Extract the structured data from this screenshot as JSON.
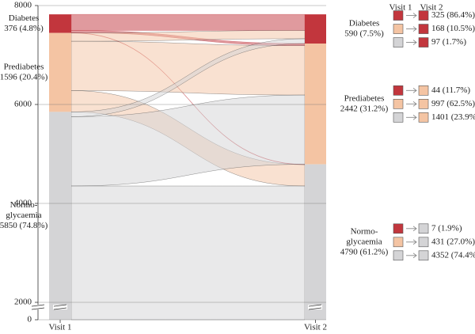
{
  "chart_data": {
    "type": "sankey",
    "stages": [
      "Visit 1",
      "Visit 2"
    ],
    "nodes": [
      {
        "name_lines": [
          "Diabetes"
        ],
        "color": "#c2363d"
      },
      {
        "name_lines": [
          "Prediabetes"
        ],
        "color": "#f4c4a3"
      },
      {
        "name_lines": [
          "Normo-",
          "glycaemia"
        ],
        "color": "#d4d4d6"
      }
    ],
    "visit1": {
      "values": [
        376,
        1596,
        5850
      ],
      "value_labels": [
        "376 (4.8%)",
        "1596 (20.4%)",
        "5850 (74.8%)"
      ]
    },
    "visit2": {
      "values": [
        590,
        2442,
        4790
      ],
      "value_labels": [
        "590 (7.5%)",
        "2442 (31.2%)",
        "4790 (61.2%)"
      ]
    },
    "flows": {
      "values": [
        [
          325,
          168,
          97
        ],
        [
          44,
          997,
          1401
        ],
        [
          7,
          431,
          4352
        ]
      ],
      "value_labels": [
        [
          "325 (86.4%)",
          "168 (10.5%)",
          "97 (1.7%)"
        ],
        [
          "44 (11.7%)",
          "997 (62.5%)",
          "1401 (23.9%)"
        ],
        [
          "7 (1.9%)",
          "431 (27.0%)",
          "4352 (74.4%)"
        ]
      ]
    },
    "ylim": [
      0,
      8000
    ],
    "yticks": [
      0,
      2000,
      4000,
      6000,
      8000
    ],
    "axis_break": true,
    "grid": true
  }
}
